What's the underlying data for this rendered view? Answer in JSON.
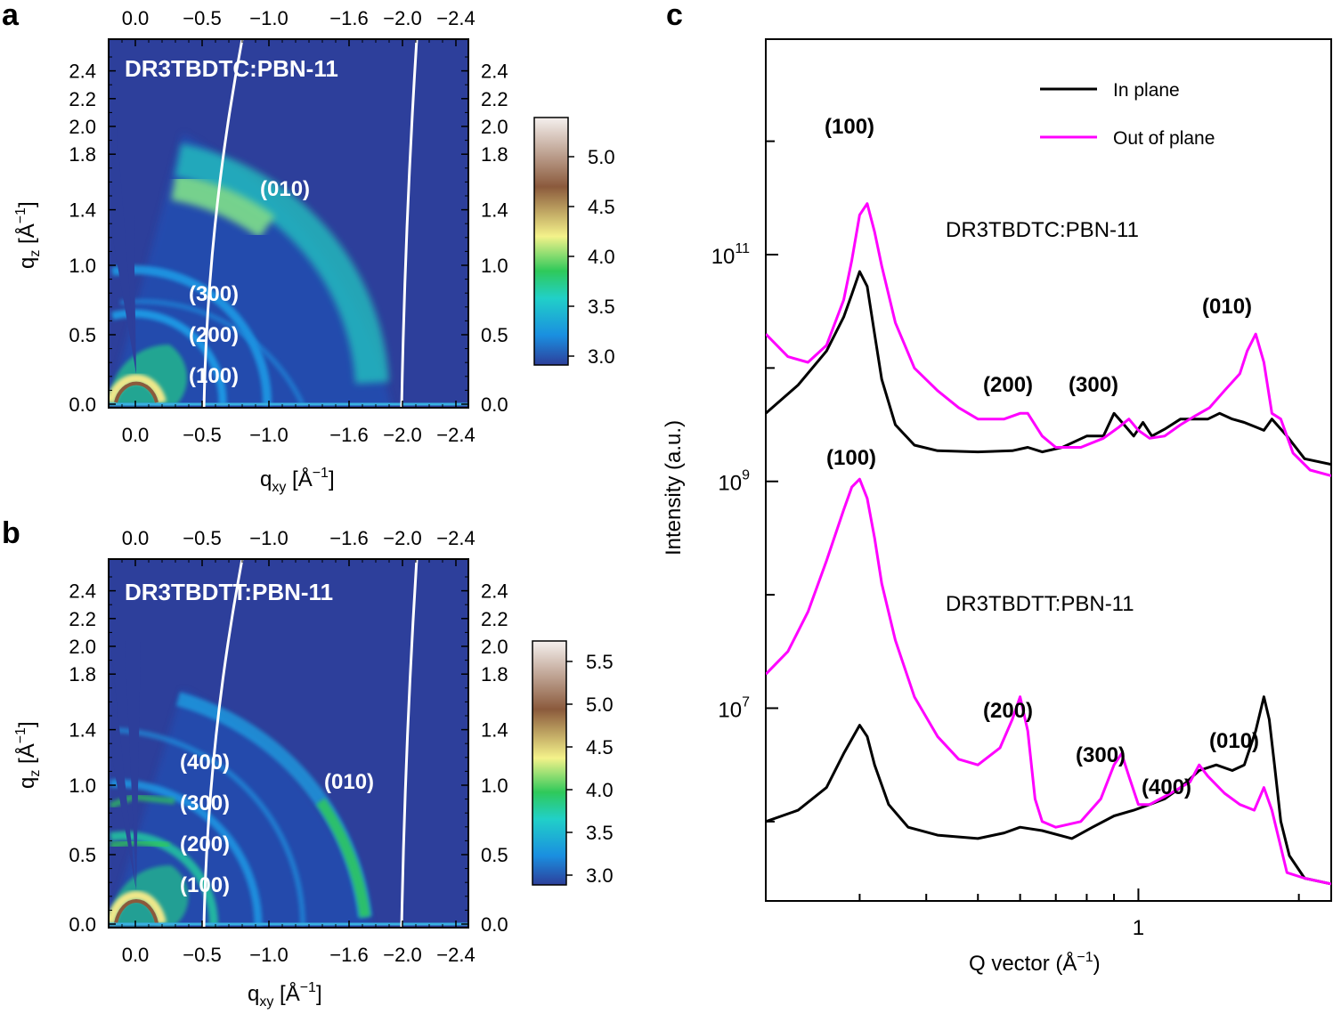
{
  "colors": {
    "map_background": "#2d3f9b",
    "in_plane": "#000000",
    "out_of_plane": "#ff00ff",
    "colormap": [
      "#2d3f9b",
      "#1a8fe0",
      "#21d0c8",
      "#2fc95a",
      "#f4f28a",
      "#8b5a3c",
      "#f5f0ee"
    ]
  },
  "panel_a": {
    "letter": "a",
    "sample": "DR3TBDTC:PBN-11",
    "qxy_ticks": [
      "0.0",
      "−0.5",
      "−1.0",
      "−1.6",
      "−2.0",
      "−2.4"
    ],
    "qz_ticks": [
      "0.0",
      "0.5",
      "1.0",
      "1.4",
      "1.8",
      "2.0",
      "2.2",
      "2.4"
    ],
    "xlabel_main": "q",
    "xlabel_sub": "xy",
    "xlabel_unit": " [Å",
    "xlabel_exp": "−1",
    "xlabel_close": "]",
    "ylabel_main": "q",
    "ylabel_sub": "z",
    "ylabel_unit": " [Å",
    "ylabel_exp": "−1",
    "ylabel_close": "]",
    "peaks": [
      "(010)",
      "(300)",
      "(200)",
      "(100)"
    ],
    "colorbar_ticks": [
      "5.0",
      "4.5",
      "4.0",
      "3.5",
      "3.0"
    ]
  },
  "panel_b": {
    "letter": "b",
    "sample": "DR3TBDTT:PBN-11",
    "qxy_ticks": [
      "0.0",
      "−0.5",
      "−1.0",
      "−1.6",
      "−2.0",
      "−2.4"
    ],
    "qz_ticks": [
      "0.0",
      "0.5",
      "1.0",
      "1.4",
      "1.8",
      "2.0",
      "2.2",
      "2.4"
    ],
    "xlabel_main": "q",
    "xlabel_sub": "xy",
    "xlabel_unit": " [Å",
    "xlabel_exp": "−1",
    "xlabel_close": "]",
    "ylabel_main": "q",
    "ylabel_sub": "z",
    "ylabel_unit": " [Å",
    "ylabel_exp": "−1",
    "ylabel_close": "]",
    "peaks": [
      "(010)",
      "(400)",
      "(300)",
      "(200)",
      "(100)"
    ],
    "colorbar_ticks": [
      "5.5",
      "5.0",
      "4.5",
      "4.0",
      "3.5",
      "3.0"
    ]
  },
  "panel_c": {
    "letter": "c",
    "xlabel": "Q vector (Å",
    "xlabel_exp": "−1",
    "xlabel_close": ")",
    "ylabel": "Intensity (a.u.)",
    "x_tick": "1",
    "y_tick_base": "10",
    "y_tick_exps": [
      "11",
      "9",
      "7"
    ],
    "legend": [
      "In plane",
      "Out of plane"
    ],
    "sample_top": "DR3TBDTC:PBN-11",
    "sample_bottom": "DR3TBDTT:PBN-11",
    "peaks_top": [
      "(100)",
      "(200)",
      "(300)",
      "(010)"
    ],
    "peaks_bottom": [
      "(100)",
      "(200)",
      "(300)",
      "(400)",
      "(010)"
    ]
  },
  "chart_data": [
    {
      "type": "heatmap",
      "title": "DR3TBDTC:PBN-11",
      "xlabel": "qxy [Å−1]",
      "ylabel": "qz [Å−1]",
      "xlim": [
        0.2,
        -2.6
      ],
      "ylim": [
        0.0,
        2.6
      ],
      "colorbar_range": [
        2.9,
        5.3
      ],
      "rings": [
        {
          "label": "(100)",
          "q": 0.31,
          "level": 5.2
        },
        {
          "label": "(200)",
          "q": 0.62,
          "level": 3.4
        },
        {
          "label": "(300)",
          "q": 0.93,
          "level": 3.3
        },
        {
          "label": "(010)",
          "q": 1.72,
          "level": 3.8
        }
      ]
    },
    {
      "type": "heatmap",
      "title": "DR3TBDTT:PBN-11",
      "xlabel": "qxy [Å−1]",
      "ylabel": "qz [Å−1]",
      "xlim": [
        0.2,
        -2.6
      ],
      "ylim": [
        0.0,
        2.6
      ],
      "colorbar_range": [
        2.8,
        5.8
      ],
      "rings": [
        {
          "label": "(100)",
          "q": 0.31,
          "level": 5.6
        },
        {
          "label": "(200)",
          "q": 0.62,
          "level": 3.8
        },
        {
          "label": "(300)",
          "q": 0.93,
          "level": 3.6
        },
        {
          "label": "(400)",
          "q": 1.24,
          "level": 3.2
        },
        {
          "label": "(010)",
          "q": 1.75,
          "level": 3.6
        }
      ]
    },
    {
      "type": "line",
      "title": "",
      "xlabel": "Q vector (Å−1)",
      "ylabel": "Intensity (a.u.)",
      "xscale": "log",
      "yscale": "log",
      "xlim": [
        0.2,
        2.3
      ],
      "ylim_log10": [
        5.3,
        12.9
      ],
      "series": [
        {
          "name": "In plane",
          "sample": "DR3TBDTC:PBN-11",
          "color": "#000000",
          "x": [
            0.2,
            0.23,
            0.26,
            0.28,
            0.29,
            0.3,
            0.31,
            0.32,
            0.33,
            0.35,
            0.38,
            0.42,
            0.5,
            0.58,
            0.62,
            0.66,
            0.72,
            0.8,
            0.86,
            0.9,
            0.94,
            0.98,
            1.02,
            1.06,
            1.12,
            1.2,
            1.28,
            1.35,
            1.42,
            1.5,
            1.58,
            1.66,
            1.72,
            1.78,
            1.9,
            2.05,
            2.3
          ],
          "log10_y": [
            9.6,
            9.85,
            10.15,
            10.45,
            10.65,
            10.85,
            10.72,
            10.3,
            9.9,
            9.5,
            9.32,
            9.27,
            9.26,
            9.27,
            9.3,
            9.26,
            9.3,
            9.4,
            9.4,
            9.6,
            9.5,
            9.4,
            9.52,
            9.4,
            9.46,
            9.55,
            9.55,
            9.55,
            9.6,
            9.55,
            9.52,
            9.48,
            9.45,
            9.55,
            9.4,
            9.2,
            9.15
          ]
        },
        {
          "name": "Out of plane",
          "sample": "DR3TBDTC:PBN-11",
          "color": "#ff00ff",
          "x": [
            0.2,
            0.22,
            0.24,
            0.26,
            0.28,
            0.29,
            0.3,
            0.31,
            0.32,
            0.33,
            0.35,
            0.38,
            0.42,
            0.46,
            0.5,
            0.56,
            0.6,
            0.62,
            0.66,
            0.7,
            0.78,
            0.86,
            0.92,
            0.96,
            1.0,
            1.05,
            1.12,
            1.2,
            1.28,
            1.36,
            1.45,
            1.55,
            1.6,
            1.66,
            1.72,
            1.78,
            1.85,
            1.95,
            2.1,
            2.3
          ],
          "log10_y": [
            10.3,
            10.1,
            10.05,
            10.2,
            10.6,
            10.95,
            11.35,
            11.45,
            11.2,
            10.9,
            10.4,
            10.0,
            9.8,
            9.65,
            9.55,
            9.55,
            9.6,
            9.6,
            9.4,
            9.3,
            9.3,
            9.38,
            9.48,
            9.55,
            9.45,
            9.38,
            9.4,
            9.5,
            9.58,
            9.65,
            9.8,
            9.95,
            10.15,
            10.3,
            10.05,
            9.6,
            9.55,
            9.25,
            9.1,
            9.05
          ]
        },
        {
          "name": "In plane",
          "sample": "DR3TBDTT:PBN-11",
          "color": "#000000",
          "x": [
            0.2,
            0.23,
            0.26,
            0.28,
            0.3,
            0.31,
            0.32,
            0.34,
            0.37,
            0.42,
            0.5,
            0.56,
            0.6,
            0.66,
            0.75,
            0.82,
            0.9,
            0.98,
            1.05,
            1.12,
            1.2,
            1.3,
            1.4,
            1.5,
            1.58,
            1.66,
            1.72,
            1.76,
            1.8,
            1.85,
            1.92,
            2.05,
            2.3
          ],
          "log10_y": [
            6.0,
            6.1,
            6.3,
            6.6,
            6.85,
            6.75,
            6.5,
            6.15,
            5.95,
            5.88,
            5.85,
            5.9,
            5.95,
            5.92,
            5.85,
            5.95,
            6.05,
            6.1,
            6.15,
            6.2,
            6.3,
            6.45,
            6.5,
            6.45,
            6.5,
            6.8,
            7.1,
            6.9,
            6.5,
            6.0,
            5.7,
            5.5,
            5.45
          ]
        },
        {
          "name": "Out of plane",
          "sample": "DR3TBDTT:PBN-11",
          "color": "#ff00ff",
          "x": [
            0.2,
            0.22,
            0.24,
            0.26,
            0.28,
            0.29,
            0.3,
            0.31,
            0.32,
            0.33,
            0.35,
            0.38,
            0.42,
            0.46,
            0.5,
            0.55,
            0.58,
            0.6,
            0.62,
            0.64,
            0.66,
            0.7,
            0.78,
            0.85,
            0.9,
            0.93,
            0.96,
            1.0,
            1.05,
            1.15,
            1.25,
            1.3,
            1.35,
            1.45,
            1.55,
            1.65,
            1.72,
            1.78,
            1.9,
            2.05,
            2.3
          ],
          "log10_y": [
            7.3,
            7.5,
            7.85,
            8.3,
            8.75,
            8.95,
            9.02,
            8.85,
            8.5,
            8.1,
            7.6,
            7.1,
            6.75,
            6.55,
            6.5,
            6.65,
            6.9,
            7.1,
            6.8,
            6.2,
            6.0,
            5.95,
            6.0,
            6.2,
            6.5,
            6.6,
            6.4,
            6.15,
            6.15,
            6.25,
            6.35,
            6.5,
            6.4,
            6.25,
            6.15,
            6.1,
            6.3,
            6.1,
            5.55,
            5.5,
            5.45
          ]
        }
      ]
    }
  ]
}
